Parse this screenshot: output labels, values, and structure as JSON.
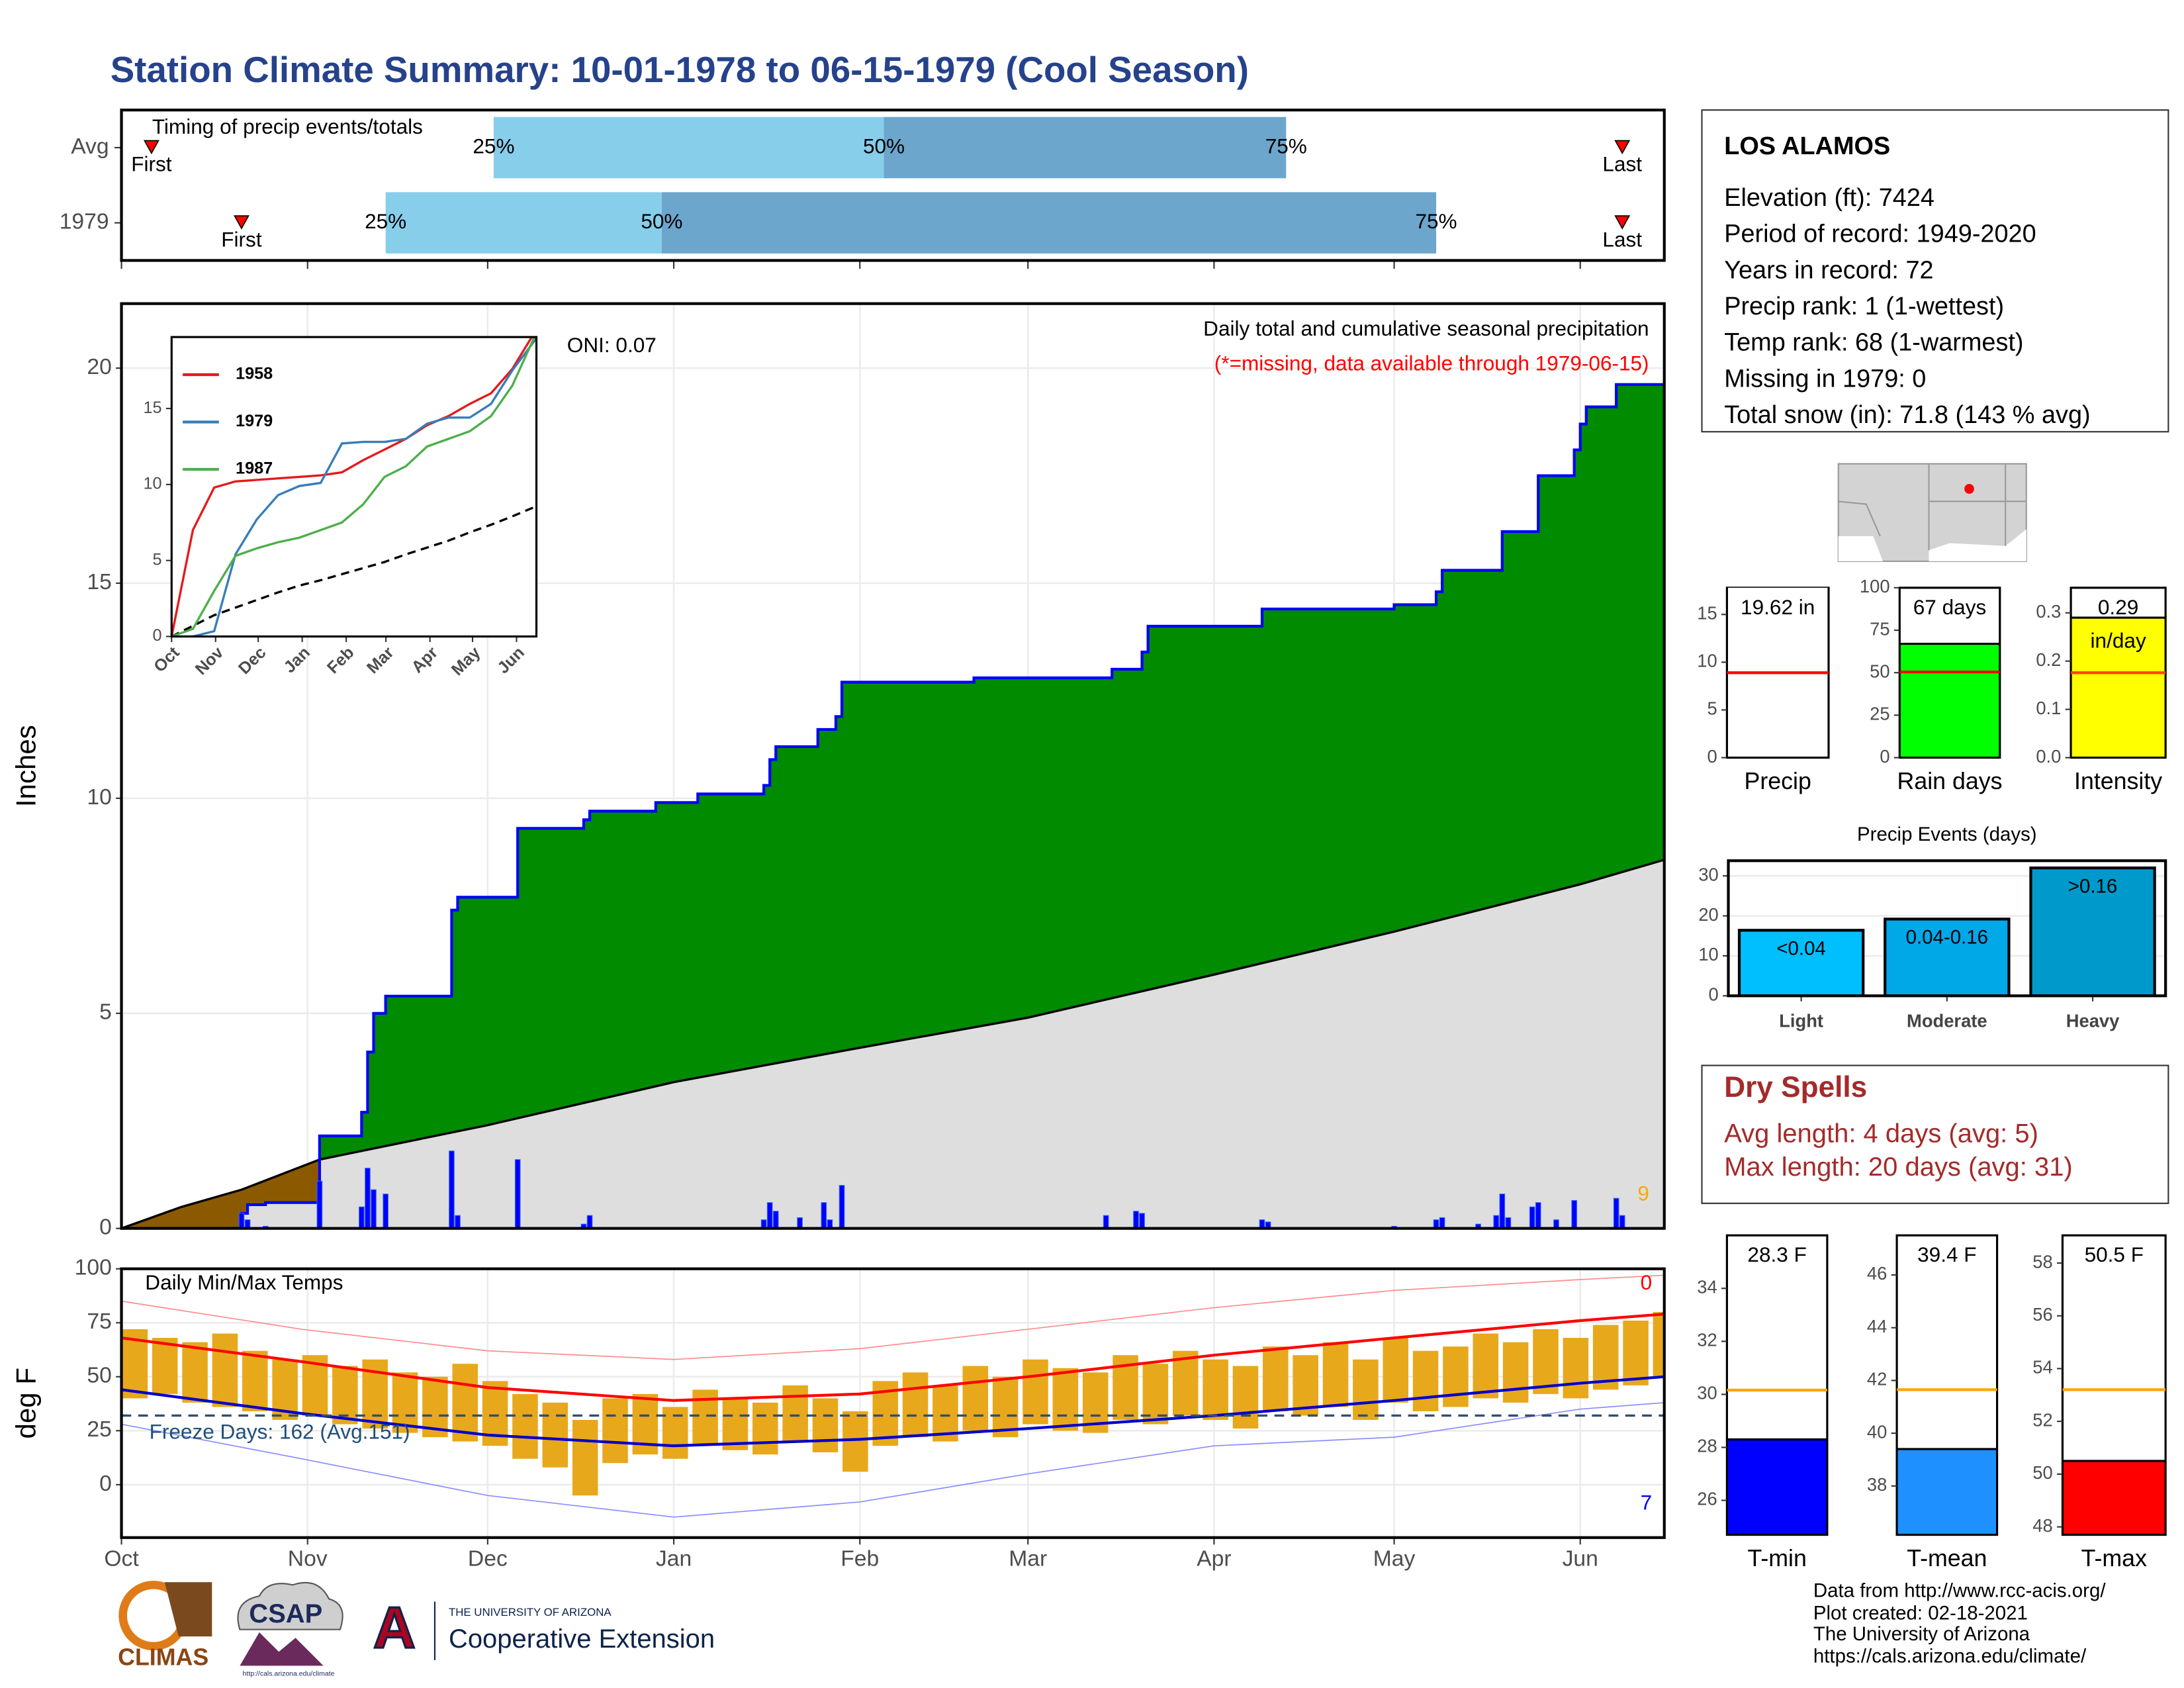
{
  "title": "Station Climate Summary: 10-01-1978 to 06-15-1979 (Cool Season)",
  "station": {
    "name": "LOS ALAMOS",
    "lines": [
      "Elevation (ft): 7424",
      "Period of record: 1949-2020",
      "Years in record: 72",
      "Precip rank: 1 (1-wettest)",
      "Temp rank: 68 (1-warmest)",
      "Missing in 1979: 0",
      "Total snow (in): 71.8 (143 % avg)"
    ]
  },
  "dry_spells": {
    "title": "Dry Spells",
    "lines": [
      "Avg length: 4 days (avg: 5)",
      "Max length: 20 days (avg: 31)"
    ]
  },
  "footer": [
    "Data from http://www.rcc-acis.org/",
    "Plot created: 02-18-2021",
    "The University of Arizona",
    "https://cals.arizona.edu/climate/"
  ],
  "logos": {
    "climas": "CLIMAS",
    "csap": "CSAP",
    "csap_url": "http://cals.arizona.edu/climate",
    "ua_mark": "A",
    "ua_name": "THE UNIVERSITY OF ARIZONA",
    "extension": "Cooperative Extension"
  },
  "chart_data": [
    {
      "type": "timing",
      "title": "Timing of precip events/totals",
      "categories": [
        "Avg",
        "1979"
      ],
      "events": [
        "First",
        "25%",
        "50%",
        "75%",
        "Last"
      ],
      "values": [
        [
          5,
          62,
          127,
          194,
          250
        ],
        [
          20,
          44,
          90,
          219,
          250
        ]
      ],
      "colors": [
        "#87ceeb",
        "#6ca6cd"
      ],
      "marker_color": "#ff0000",
      "xlim": [
        0,
        257
      ],
      "xticks": [
        0,
        31,
        61,
        92,
        123,
        151,
        182,
        212,
        243
      ]
    },
    {
      "type": "cumulative",
      "y_label": "Inches",
      "annotations": [
        {
          "text": "ONI: 0.07",
          "color": "#000000"
        },
        {
          "text": "Daily total and cumulative seasonal precipitation",
          "color": "#000000"
        },
        {
          "text": "(*=missing, data available through 1979-06-15)",
          "color": "#ff0000"
        },
        {
          "text": "9",
          "color": "#ffa500"
        }
      ],
      "observed": {
        "x": [
          0,
          20,
          21,
          24,
          33,
          40,
          41,
          42,
          44,
          55,
          56,
          66,
          77,
          78,
          89,
          96,
          107,
          108,
          109,
          116,
          119,
          120,
          142,
          165,
          170,
          171,
          190,
          212,
          219,
          220,
          230,
          236,
          242,
          243,
          244,
          249,
          257
        ],
        "values": [
          0,
          0.35,
          0.55,
          0.6,
          2.15,
          2.7,
          4.1,
          5.0,
          5.4,
          7.4,
          7.7,
          9.3,
          9.5,
          9.7,
          9.9,
          10.1,
          10.3,
          10.9,
          11.2,
          11.6,
          11.9,
          12.7,
          12.8,
          13.0,
          13.4,
          14.0,
          14.4,
          14.5,
          14.8,
          15.3,
          16.2,
          17.5,
          18.1,
          18.7,
          19.1,
          19.62,
          19.62
        ],
        "color": "#008b00",
        "line_color": "#0000ff"
      },
      "average": {
        "x": [
          0,
          10,
          20,
          33,
          61,
          92,
          123,
          151,
          182,
          212,
          243,
          257
        ],
        "values": [
          0,
          0.5,
          0.9,
          1.6,
          2.4,
          3.4,
          4.2,
          4.9,
          5.9,
          6.9,
          8.0,
          8.57
        ],
        "color": "#dedede",
        "line_color": "#000000"
      },
      "deficit_color": "#8b5a00",
      "daily": {
        "x": [
          20,
          21,
          24,
          33,
          40,
          41,
          42,
          44,
          55,
          56,
          66,
          77,
          78,
          107,
          108,
          109,
          113,
          117,
          118,
          120,
          164,
          169,
          170,
          190,
          191,
          212,
          219,
          220,
          226,
          229,
          230,
          231,
          235,
          236,
          239,
          242,
          249,
          250
        ],
        "values": [
          0.35,
          0.2,
          0.05,
          1.1,
          0.5,
          1.4,
          0.9,
          0.8,
          1.8,
          0.3,
          1.6,
          0.1,
          0.3,
          0.2,
          0.6,
          0.4,
          0.25,
          0.6,
          0.2,
          1.0,
          0.3,
          0.4,
          0.35,
          0.2,
          0.15,
          0.05,
          0.2,
          0.25,
          0.1,
          0.3,
          0.8,
          0.25,
          0.5,
          0.6,
          0.2,
          0.65,
          0.7,
          0.3
        ],
        "color": "#0000ff"
      },
      "xlim": [
        0,
        257
      ],
      "xticks": [
        0,
        31,
        61,
        92,
        123,
        151,
        182,
        212,
        243
      ],
      "ylim": [
        0,
        21.5
      ],
      "yticks": [
        0,
        5,
        10,
        15,
        20
      ],
      "grid": true
    },
    {
      "type": "line",
      "legend": "upper left",
      "x": [
        0,
        15,
        30,
        45,
        60,
        75,
        90,
        105,
        120,
        135,
        150,
        165,
        180,
        195,
        210,
        225,
        240,
        257
      ],
      "series": [
        {
          "name": "1958",
          "color": "#e41a1c",
          "values": [
            0,
            7,
            9.8,
            10.2,
            10.3,
            10.4,
            10.5,
            10.6,
            10.8,
            11.6,
            12.3,
            13,
            13.9,
            14.5,
            15.3,
            16,
            17.6,
            20.2
          ]
        },
        {
          "name": "1979",
          "color": "#377eb8",
          "values": [
            0,
            0,
            0.35,
            5.4,
            7.7,
            9.3,
            9.9,
            10.1,
            12.7,
            12.8,
            12.8,
            13.0,
            14.0,
            14.4,
            14.4,
            15.3,
            17.5,
            19.62
          ]
        },
        {
          "name": "1987",
          "color": "#4daf4a",
          "values": [
            0,
            0.5,
            3,
            5.3,
            5.8,
            6.2,
            6.5,
            7,
            7.5,
            8.7,
            10.5,
            11.2,
            12.5,
            13,
            13.5,
            14.5,
            16.5,
            20
          ]
        }
      ],
      "average": {
        "color": "#000000",
        "values": [
          0,
          0.7,
          1.4,
          1.9,
          2.4,
          2.9,
          3.35,
          3.7,
          4.1,
          4.5,
          4.9,
          5.4,
          5.85,
          6.3,
          6.85,
          7.35,
          7.9,
          8.57
        ]
      },
      "xlim": [
        0,
        257
      ],
      "xticks": [
        {
          "value": 0,
          "label": "Oct"
        },
        {
          "value": 31,
          "label": "Nov"
        },
        {
          "value": 61,
          "label": "Dec"
        },
        {
          "value": 92,
          "label": "Jan"
        },
        {
          "value": 123,
          "label": "Feb"
        },
        {
          "value": 151,
          "label": "Mar"
        },
        {
          "value": 182,
          "label": "Apr"
        },
        {
          "value": 212,
          "label": "May"
        },
        {
          "value": 243,
          "label": "Jun"
        }
      ],
      "ylim": [
        0,
        19.7
      ],
      "yticks": [
        0,
        5,
        10,
        15
      ]
    },
    {
      "type": "temperature",
      "y_label": "deg F",
      "annotations": [
        {
          "text": "Daily Min/Max Temps",
          "color": "#000000"
        },
        {
          "text": "Freeze Days: 162 (Avg.151)",
          "color": "#1f4e79"
        },
        {
          "text": "0",
          "color": "#ff0000"
        },
        {
          "text": "7",
          "color": "#0000ff"
        }
      ],
      "x": [
        0,
        5,
        10,
        15,
        20,
        25,
        30,
        35,
        40,
        45,
        50,
        55,
        60,
        65,
        70,
        75,
        80,
        85,
        90,
        95,
        100,
        105,
        110,
        115,
        120,
        125,
        130,
        135,
        140,
        145,
        150,
        155,
        160,
        165,
        170,
        175,
        180,
        185,
        190,
        195,
        200,
        205,
        210,
        215,
        220,
        225,
        230,
        235,
        240,
        245,
        250,
        255
      ],
      "tmax": [
        72,
        68,
        66,
        70,
        62,
        58,
        60,
        55,
        58,
        52,
        50,
        56,
        48,
        42,
        38,
        30,
        40,
        42,
        36,
        44,
        40,
        38,
        46,
        40,
        34,
        48,
        52,
        46,
        55,
        50,
        58,
        54,
        52,
        60,
        56,
        62,
        58,
        55,
        64,
        60,
        66,
        58,
        68,
        62,
        64,
        70,
        66,
        72,
        68,
        74,
        76,
        80
      ],
      "tmin": [
        40,
        42,
        38,
        36,
        34,
        30,
        32,
        28,
        26,
        24,
        22,
        20,
        18,
        12,
        8,
        -5,
        10,
        14,
        12,
        18,
        16,
        14,
        20,
        15,
        6,
        18,
        22,
        20,
        25,
        22,
        28,
        25,
        24,
        30,
        28,
        32,
        30,
        26,
        34,
        32,
        36,
        30,
        38,
        34,
        36,
        40,
        38,
        42,
        40,
        44,
        46,
        50
      ],
      "avg_x": [
        0,
        30,
        61,
        92,
        123,
        151,
        182,
        212,
        243,
        257
      ],
      "avg_max": [
        68,
        57,
        45,
        39,
        42,
        50,
        60,
        68,
        76,
        79
      ],
      "avg_min": [
        44,
        33,
        23,
        18,
        21,
        26,
        32,
        39,
        47,
        50
      ],
      "record_high": [
        85,
        72,
        62,
        58,
        63,
        72,
        82,
        90,
        95,
        97
      ],
      "record_low": [
        28,
        12,
        -5,
        -15,
        -8,
        5,
        18,
        22,
        35,
        38
      ],
      "freeze": 32,
      "colors": {
        "bars": "#e8a81c",
        "avg_max": "#ff0000",
        "avg_min": "#0000cd",
        "record_high": "#ff8c8c",
        "record_low": "#8c8cff",
        "freeze": "#2f4f6f"
      },
      "xlim": [
        0,
        257
      ],
      "xticks": [
        {
          "value": 0,
          "label": "Oct"
        },
        {
          "value": 31,
          "label": "Nov"
        },
        {
          "value": 61,
          "label": "Dec"
        },
        {
          "value": 92,
          "label": "Jan"
        },
        {
          "value": 123,
          "label": "Feb"
        },
        {
          "value": 151,
          "label": "Mar"
        },
        {
          "value": 182,
          "label": "Apr"
        },
        {
          "value": 212,
          "label": "May"
        },
        {
          "value": 243,
          "label": "Jun"
        }
      ],
      "ylim": [
        -24.5,
        100
      ],
      "yticks": [
        0,
        25,
        50,
        75,
        100
      ],
      "grid": true
    },
    {
      "type": "bar",
      "categories": [
        "Precip"
      ],
      "values": [
        19.62
      ],
      "value_labels": [
        "19.62 in"
      ],
      "color": "#ffffff",
      "reference": 8.9,
      "reference_color": "#ff0000",
      "ylim": [
        0,
        17.8
      ],
      "yticks": [
        0,
        5,
        10,
        15
      ]
    },
    {
      "type": "bar",
      "categories": [
        "Rain days"
      ],
      "values": [
        67
      ],
      "value_labels": [
        "67 days"
      ],
      "color": "#00ff00",
      "reference": 50.4,
      "reference_color": "#ff0000",
      "ylim": [
        0,
        100
      ],
      "yticks": [
        0,
        25,
        50,
        75,
        100
      ]
    },
    {
      "type": "bar",
      "categories": [
        "Intensity"
      ],
      "values": [
        0.29
      ],
      "value_labels": [
        "0.29 in/day"
      ],
      "color": "#ffff00",
      "reference": 0.176,
      "reference_color": "#ff4500",
      "ylim": [
        0,
        0.352
      ],
      "yticks": [
        {
          "value": 0,
          "label": "0.0"
        },
        0.1,
        0.2,
        0.3
      ]
    },
    {
      "type": "bar",
      "title": "Precip Events (days)",
      "categories": [
        "Light",
        "Moderate",
        "Heavy"
      ],
      "values": [
        16.4,
        19.2,
        32
      ],
      "bar_labels": [
        "<0.04",
        "0.04-0.16",
        ">0.16"
      ],
      "colors": [
        "#00bfff",
        "#00a8e8",
        "#0099cc"
      ],
      "ylim": [
        0,
        33.8
      ],
      "yticks": [
        0,
        10,
        20,
        30
      ],
      "grid": true
    },
    {
      "type": "bar",
      "categories": [
        "T-min"
      ],
      "values": [
        28.3
      ],
      "value_labels": [
        "28.3 F"
      ],
      "color": "#0000ff",
      "reference": 30.16,
      "reference_color": "#ffa500",
      "ylim": [
        24.7,
        36
      ],
      "yticks": [
        26,
        28,
        30,
        32,
        34
      ]
    },
    {
      "type": "bar",
      "categories": [
        "T-mean"
      ],
      "values": [
        39.4
      ],
      "value_labels": [
        "39.4 F"
      ],
      "color": "#1e90ff",
      "reference": 41.65,
      "reference_color": "#ffa500",
      "ylim": [
        36.15,
        47.5
      ],
      "yticks": [
        38,
        40,
        42,
        44,
        46
      ]
    },
    {
      "type": "bar",
      "categories": [
        "T-max"
      ],
      "values": [
        50.5
      ],
      "value_labels": [
        "50.5 F"
      ],
      "color": "#ff0000",
      "reference": 53.2,
      "reference_color": "#ffa500",
      "ylim": [
        47.7,
        59.05
      ],
      "yticks": [
        48,
        50,
        52,
        54,
        56,
        58
      ]
    }
  ]
}
